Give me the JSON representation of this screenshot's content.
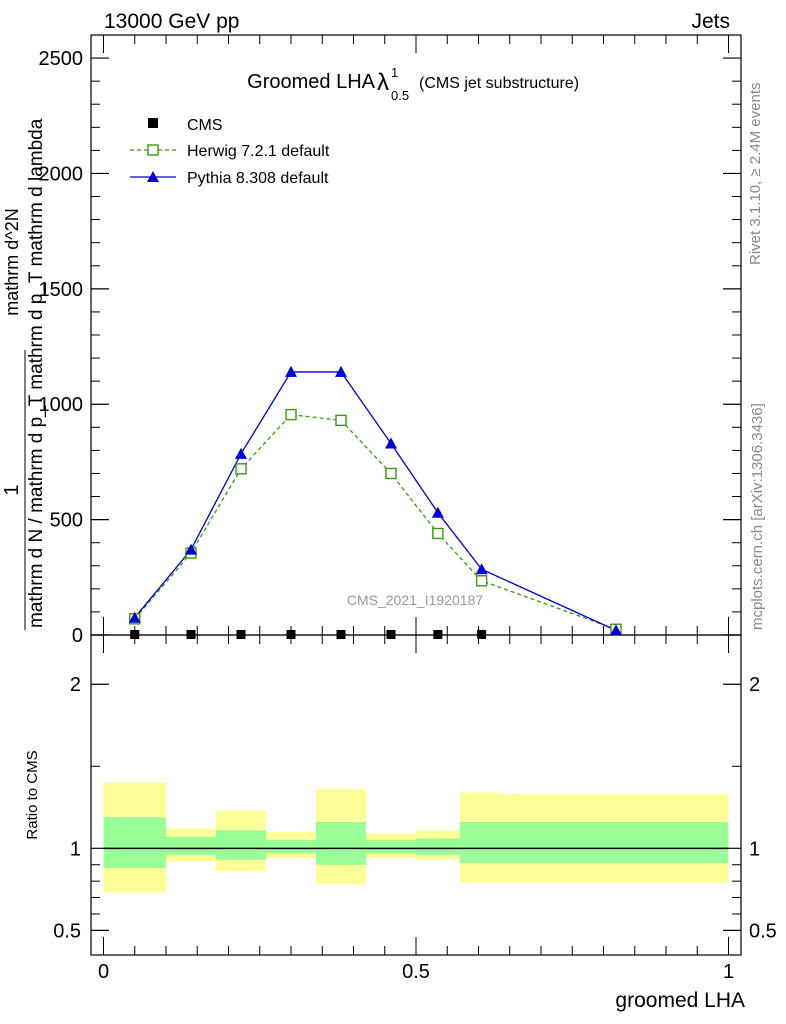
{
  "header": {
    "left": "13000 GeV pp",
    "right": "Jets"
  },
  "side_labels": {
    "rivet": "Rivet 3.1.10, ≥ 2.4M events",
    "mcplots": "mcplots.cern.ch [arXiv:1306.3436]"
  },
  "watermark": "CMS_2021_I1920187",
  "chart_data": [
    {
      "type": "line",
      "panel": "main",
      "title_main": "Groomed LHA",
      "title_symbol": "λ",
      "title_sup": "1",
      "title_sub": "0.5",
      "title_note": "(CMS jet substructure)",
      "ylabel_numerator": "1",
      "ylabel_denominator": "mathrm d N / mathrm d p_T mathrm d p_T mathrm d lambda",
      "ylabel_top": "mathrm d^2N",
      "xlim": [
        -0.02,
        1.02
      ],
      "ylim": [
        0,
        2600
      ],
      "y_ticks": [
        0,
        500,
        1000,
        1500,
        2000,
        2500
      ],
      "y_tick_labels": [
        "0",
        "500",
        "1000",
        "1500",
        "2000",
        "2500"
      ],
      "legend_position": "top-left",
      "series": [
        {
          "name": "CMS",
          "marker": "filled-square",
          "color": "#000000",
          "x": [
            0.05,
            0.14,
            0.22,
            0.3,
            0.38,
            0.46,
            0.535,
            0.605
          ],
          "y": [
            0,
            0,
            0,
            0,
            0,
            0,
            0,
            0
          ]
        },
        {
          "name": "Herwig 7.2.1 default",
          "marker": "open-square",
          "line": "dashed",
          "color": "#3a9a10",
          "x": [
            0.05,
            0.14,
            0.22,
            0.3,
            0.38,
            0.46,
            0.535,
            0.605,
            0.82
          ],
          "y": [
            70,
            355,
            720,
            955,
            930,
            700,
            440,
            235,
            25
          ]
        },
        {
          "name": "Pythia 8.308 default",
          "marker": "filled-triangle",
          "line": "solid",
          "color": "#0000cc",
          "x": [
            0.05,
            0.14,
            0.22,
            0.3,
            0.38,
            0.46,
            0.535,
            0.605,
            0.82
          ],
          "y": [
            75,
            370,
            785,
            1140,
            1140,
            830,
            530,
            285,
            20
          ],
          "yerr": [
            3,
            6,
            10,
            22,
            22,
            12,
            6,
            4,
            2
          ]
        }
      ]
    },
    {
      "type": "area",
      "panel": "ratio",
      "ylabel": "Ratio to CMS",
      "xlabel": "groomed LHA",
      "xlim": [
        -0.02,
        1.02
      ],
      "ylim": [
        0.35,
        2.3
      ],
      "y_ticks": [
        0.5,
        1,
        2
      ],
      "y_tick_labels": [
        "0.5",
        "1",
        "2"
      ],
      "x_ticks": [
        0,
        0.5,
        1
      ],
      "x_tick_labels": [
        "0",
        "0.5",
        "1"
      ],
      "bins": [
        {
          "lo": 0.0,
          "hi": 0.1,
          "stat_lo": 0.88,
          "stat_hi": 1.19,
          "tot_lo": 0.73,
          "tot_hi": 1.4
        },
        {
          "lo": 0.1,
          "hi": 0.18,
          "stat_lo": 0.96,
          "stat_hi": 1.07,
          "tot_lo": 0.92,
          "tot_hi": 1.12
        },
        {
          "lo": 0.18,
          "hi": 0.26,
          "stat_lo": 0.93,
          "stat_hi": 1.11,
          "tot_lo": 0.86,
          "tot_hi": 1.23
        },
        {
          "lo": 0.26,
          "hi": 0.34,
          "stat_lo": 0.97,
          "stat_hi": 1.05,
          "tot_lo": 0.94,
          "tot_hi": 1.1
        },
        {
          "lo": 0.34,
          "hi": 0.42,
          "stat_lo": 0.9,
          "stat_hi": 1.16,
          "tot_lo": 0.78,
          "tot_hi": 1.36
        },
        {
          "lo": 0.42,
          "hi": 0.5,
          "stat_lo": 0.97,
          "stat_hi": 1.05,
          "tot_lo": 0.94,
          "tot_hi": 1.09
        },
        {
          "lo": 0.5,
          "hi": 0.57,
          "stat_lo": 0.96,
          "stat_hi": 1.06,
          "tot_lo": 0.93,
          "tot_hi": 1.11
        },
        {
          "lo": 0.57,
          "hi": 0.64,
          "stat_lo": 0.91,
          "stat_hi": 1.16,
          "tot_lo": 0.79,
          "tot_hi": 1.34
        },
        {
          "lo": 0.64,
          "hi": 1.0,
          "stat_lo": 0.91,
          "stat_hi": 1.16,
          "tot_lo": 0.79,
          "tot_hi": 1.33
        }
      ],
      "series": [
        {
          "name": "Herwig 7.2.1 default",
          "x": [],
          "y": []
        },
        {
          "name": "Pythia 8.308 default",
          "x": [],
          "y": []
        }
      ]
    }
  ],
  "colors": {
    "stat_band": "#99ff99",
    "total_band": "#ffff99",
    "herwig": "#3a9a10",
    "pythia": "#0000cc",
    "cms": "#000000",
    "watermark": "#999999",
    "side_text": "#888888"
  }
}
